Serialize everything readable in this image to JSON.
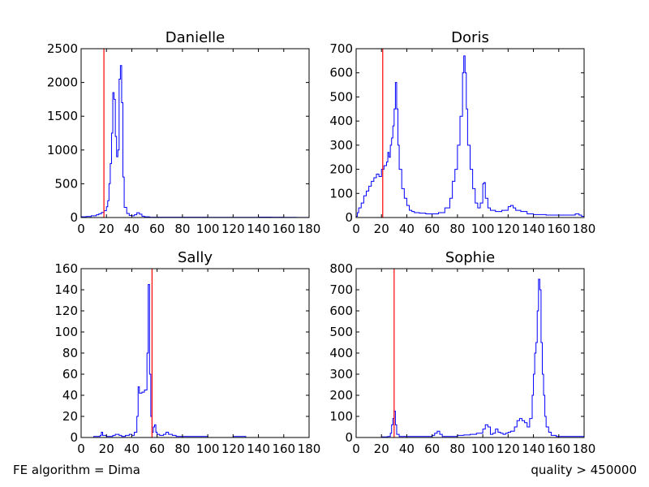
{
  "footer": {
    "left": "FE algorithm = Dima",
    "right": "quality > 450000"
  },
  "colors": {
    "histogram": "#0000ff",
    "threshold": "#ff0000"
  },
  "chart_data": [
    {
      "type": "line",
      "style": "step-histogram",
      "title": "Danielle",
      "xlim": [
        0,
        180
      ],
      "ylim": [
        0,
        2500
      ],
      "xticks": [
        0,
        20,
        40,
        60,
        80,
        100,
        120,
        140,
        160,
        180
      ],
      "yticks": [
        0,
        500,
        1000,
        1500,
        2000,
        2500
      ],
      "threshold_x": 18,
      "series": [
        {
          "values": [
            [
              0,
              10
            ],
            [
              4,
              15
            ],
            [
              8,
              25
            ],
            [
              12,
              40
            ],
            [
              14,
              55
            ],
            [
              16,
              75
            ],
            [
              18,
              100
            ],
            [
              20,
              160
            ],
            [
              21,
              250
            ],
            [
              22,
              500
            ],
            [
              23,
              800
            ],
            [
              24,
              1250
            ],
            [
              25,
              1850
            ],
            [
              26,
              1750
            ],
            [
              27,
              1200
            ],
            [
              28,
              900
            ],
            [
              29,
              1000
            ],
            [
              30,
              2050
            ],
            [
              31,
              2250
            ],
            [
              32,
              1700
            ],
            [
              33,
              600
            ],
            [
              34,
              150
            ],
            [
              36,
              60
            ],
            [
              38,
              30
            ],
            [
              40,
              25
            ],
            [
              42,
              40
            ],
            [
              44,
              70
            ],
            [
              46,
              50
            ],
            [
              48,
              20
            ],
            [
              50,
              10
            ],
            [
              54,
              5
            ],
            [
              60,
              5
            ],
            [
              70,
              5
            ],
            [
              80,
              4
            ],
            [
              100,
              3
            ],
            [
              120,
              3
            ],
            [
              140,
              6
            ],
            [
              150,
              5
            ],
            [
              160,
              3
            ],
            [
              170,
              2
            ],
            [
              178,
              2
            ]
          ]
        }
      ]
    },
    {
      "type": "line",
      "style": "step-histogram",
      "title": "Doris",
      "xlim": [
        0,
        180
      ],
      "ylim": [
        0,
        700
      ],
      "xticks": [
        0,
        20,
        40,
        60,
        80,
        100,
        120,
        140,
        160,
        180
      ],
      "yticks": [
        0,
        100,
        200,
        300,
        400,
        500,
        600,
        700
      ],
      "threshold_x": 21,
      "series": [
        {
          "values": [
            [
              0,
              5
            ],
            [
              1,
              20
            ],
            [
              2,
              40
            ],
            [
              4,
              60
            ],
            [
              6,
              90
            ],
            [
              8,
              110
            ],
            [
              10,
              130
            ],
            [
              12,
              150
            ],
            [
              14,
              165
            ],
            [
              16,
              180
            ],
            [
              18,
              170
            ],
            [
              20,
              200
            ],
            [
              22,
              215
            ],
            [
              24,
              230
            ],
            [
              25,
              270
            ],
            [
              26,
              250
            ],
            [
              27,
              300
            ],
            [
              28,
              330
            ],
            [
              29,
              380
            ],
            [
              30,
              450
            ],
            [
              31,
              560
            ],
            [
              32,
              450
            ],
            [
              33,
              300
            ],
            [
              34,
              200
            ],
            [
              36,
              120
            ],
            [
              38,
              80
            ],
            [
              40,
              50
            ],
            [
              42,
              30
            ],
            [
              44,
              25
            ],
            [
              46,
              20
            ],
            [
              50,
              18
            ],
            [
              55,
              15
            ],
            [
              60,
              15
            ],
            [
              65,
              20
            ],
            [
              70,
              40
            ],
            [
              74,
              80
            ],
            [
              76,
              150
            ],
            [
              78,
              200
            ],
            [
              80,
              300
            ],
            [
              82,
              420
            ],
            [
              84,
              600
            ],
            [
              85,
              670
            ],
            [
              86,
              600
            ],
            [
              87,
              450
            ],
            [
              88,
              300
            ],
            [
              90,
              200
            ],
            [
              92,
              120
            ],
            [
              94,
              60
            ],
            [
              96,
              40
            ],
            [
              98,
              60
            ],
            [
              100,
              140
            ],
            [
              101,
              145
            ],
            [
              102,
              80
            ],
            [
              104,
              40
            ],
            [
              106,
              30
            ],
            [
              110,
              25
            ],
            [
              115,
              30
            ],
            [
              120,
              45
            ],
            [
              122,
              50
            ],
            [
              124,
              40
            ],
            [
              126,
              30
            ],
            [
              130,
              25
            ],
            [
              135,
              15
            ],
            [
              140,
              12
            ],
            [
              150,
              10
            ],
            [
              160,
              10
            ],
            [
              170,
              10
            ],
            [
              173,
              15
            ],
            [
              176,
              10
            ],
            [
              178,
              5
            ]
          ]
        }
      ]
    },
    {
      "type": "line",
      "style": "step-histogram",
      "title": "Sally",
      "xlim": [
        0,
        180
      ],
      "ylim": [
        0,
        160
      ],
      "xticks": [
        0,
        20,
        40,
        60,
        80,
        100,
        120,
        140,
        160,
        180
      ],
      "yticks": [
        0,
        20,
        40,
        60,
        80,
        100,
        120,
        140,
        160
      ],
      "threshold_x": 56,
      "series": [
        {
          "values": [
            [
              0,
              0
            ],
            [
              10,
              1
            ],
            [
              15,
              2
            ],
            [
              16,
              5
            ],
            [
              17,
              2
            ],
            [
              20,
              1
            ],
            [
              25,
              2
            ],
            [
              27,
              3
            ],
            [
              30,
              2
            ],
            [
              32,
              1
            ],
            [
              35,
              2
            ],
            [
              38,
              3
            ],
            [
              40,
              2
            ],
            [
              42,
              5
            ],
            [
              44,
              20
            ],
            [
              45,
              48
            ],
            [
              46,
              42
            ],
            [
              48,
              43
            ],
            [
              50,
              45
            ],
            [
              52,
              80
            ],
            [
              53,
              145
            ],
            [
              54,
              60
            ],
            [
              55,
              20
            ],
            [
              56,
              5
            ],
            [
              57,
              10
            ],
            [
              58,
              12
            ],
            [
              59,
              5
            ],
            [
              60,
              3
            ],
            [
              62,
              2
            ],
            [
              65,
              3
            ],
            [
              67,
              5
            ],
            [
              69,
              3
            ],
            [
              72,
              2
            ],
            [
              75,
              1
            ],
            [
              80,
              1
            ],
            [
              90,
              1
            ],
            [
              100,
              0
            ],
            [
              120,
              1
            ],
            [
              130,
              0
            ],
            [
              140,
              0
            ],
            [
              150,
              0
            ],
            [
              160,
              0
            ],
            [
              170,
              0
            ],
            [
              178,
              0
            ]
          ]
        }
      ]
    },
    {
      "type": "line",
      "style": "step-histogram",
      "title": "Sophie",
      "xlim": [
        0,
        180
      ],
      "ylim": [
        0,
        800
      ],
      "xticks": [
        0,
        20,
        40,
        60,
        80,
        100,
        120,
        140,
        160,
        180
      ],
      "yticks": [
        0,
        100,
        200,
        300,
        400,
        500,
        600,
        700,
        800
      ],
      "threshold_x": 30,
      "series": [
        {
          "values": [
            [
              0,
              0
            ],
            [
              10,
              0
            ],
            [
              20,
              3
            ],
            [
              25,
              5
            ],
            [
              27,
              20
            ],
            [
              28,
              60
            ],
            [
              29,
              90
            ],
            [
              30,
              125
            ],
            [
              31,
              60
            ],
            [
              32,
              15
            ],
            [
              34,
              5
            ],
            [
              40,
              5
            ],
            [
              50,
              5
            ],
            [
              55,
              5
            ],
            [
              60,
              10
            ],
            [
              62,
              20
            ],
            [
              64,
              30
            ],
            [
              66,
              15
            ],
            [
              68,
              5
            ],
            [
              75,
              5
            ],
            [
              80,
              10
            ],
            [
              85,
              12
            ],
            [
              90,
              15
            ],
            [
              95,
              20
            ],
            [
              100,
              40
            ],
            [
              102,
              60
            ],
            [
              104,
              50
            ],
            [
              106,
              15
            ],
            [
              108,
              20
            ],
            [
              110,
              40
            ],
            [
              112,
              25
            ],
            [
              114,
              20
            ],
            [
              116,
              15
            ],
            [
              118,
              20
            ],
            [
              120,
              25
            ],
            [
              122,
              30
            ],
            [
              125,
              50
            ],
            [
              127,
              80
            ],
            [
              129,
              90
            ],
            [
              131,
              80
            ],
            [
              133,
              70
            ],
            [
              135,
              50
            ],
            [
              137,
              90
            ],
            [
              139,
              200
            ],
            [
              140,
              300
            ],
            [
              141,
              400
            ],
            [
              142,
              450
            ],
            [
              143,
              600
            ],
            [
              144,
              750
            ],
            [
              145,
              700
            ],
            [
              146,
              450
            ],
            [
              147,
              300
            ],
            [
              148,
              200
            ],
            [
              149,
              100
            ],
            [
              150,
              50
            ],
            [
              152,
              25
            ],
            [
              154,
              10
            ],
            [
              158,
              5
            ],
            [
              165,
              5
            ],
            [
              170,
              5
            ],
            [
              178,
              5
            ]
          ]
        }
      ]
    }
  ]
}
